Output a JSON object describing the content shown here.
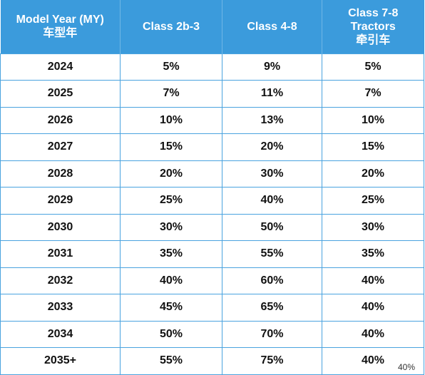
{
  "chart_data": {
    "type": "table",
    "columns": [
      {
        "lines": [
          "Model Year (MY)",
          "车型年"
        ]
      },
      {
        "lines": [
          "Class 2b-3"
        ]
      },
      {
        "lines": [
          "Class 4-8"
        ]
      },
      {
        "lines": [
          "Class 7-8",
          "Tractors",
          "牵引车"
        ]
      }
    ],
    "rows": [
      {
        "year": "2024",
        "values": [
          "5%",
          "9%",
          "5%"
        ]
      },
      {
        "year": "2025",
        "values": [
          "7%",
          "11%",
          "7%"
        ]
      },
      {
        "year": "2026",
        "values": [
          "10%",
          "13%",
          "10%"
        ]
      },
      {
        "year": "2027",
        "values": [
          "15%",
          "20%",
          "15%"
        ]
      },
      {
        "year": "2028",
        "values": [
          "20%",
          "30%",
          "20%"
        ]
      },
      {
        "year": "2029",
        "values": [
          "25%",
          "40%",
          "25%"
        ]
      },
      {
        "year": "2030",
        "values": [
          "30%",
          "50%",
          "30%"
        ]
      },
      {
        "year": "2031",
        "values": [
          "35%",
          "55%",
          "35%"
        ]
      },
      {
        "year": "2032",
        "values": [
          "40%",
          "60%",
          "40%"
        ]
      },
      {
        "year": "2033",
        "values": [
          "45%",
          "65%",
          "40%"
        ]
      },
      {
        "year": "2034",
        "values": [
          "50%",
          "70%",
          "40%"
        ]
      },
      {
        "year": "2035+",
        "values": [
          "55%",
          "75%",
          "40%"
        ]
      }
    ],
    "header_color": "#3b9bdc",
    "border_color": "#4aa3df"
  },
  "watermark": "40%"
}
